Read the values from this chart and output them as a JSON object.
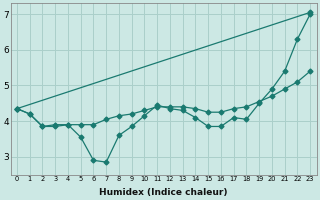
{
  "xlabel": "Humidex (Indice chaleur)",
  "xlim": [
    -0.5,
    23.5
  ],
  "ylim": [
    2.5,
    7.3
  ],
  "yticks": [
    3,
    4,
    5,
    6,
    7
  ],
  "xticks": [
    0,
    1,
    2,
    3,
    4,
    5,
    6,
    7,
    8,
    9,
    10,
    11,
    12,
    13,
    14,
    15,
    16,
    17,
    18,
    19,
    20,
    21,
    22,
    23
  ],
  "bg_color": "#cce8e4",
  "grid_color": "#aacfca",
  "line_color": "#1a7a70",
  "line_top": {
    "x": [
      0,
      23
    ],
    "y": [
      4.35,
      7.05
    ]
  },
  "line_mid": {
    "x": [
      0,
      1,
      2,
      3,
      4,
      5,
      6,
      7,
      8,
      9,
      10,
      11,
      12,
      13,
      14,
      15,
      16,
      17,
      18,
      19,
      20,
      21,
      22,
      23
    ],
    "y": [
      4.35,
      4.2,
      3.85,
      3.9,
      3.9,
      3.9,
      3.9,
      4.05,
      4.15,
      4.2,
      4.3,
      4.4,
      4.4,
      4.4,
      4.35,
      4.25,
      4.25,
      4.35,
      4.4,
      4.55,
      4.7,
      4.9,
      5.1,
      5.4
    ]
  },
  "line_low": {
    "x": [
      0,
      1,
      2,
      3,
      4,
      5,
      6,
      7,
      8,
      9,
      10,
      11,
      12,
      13,
      14,
      15,
      16,
      17,
      18,
      19,
      20,
      21,
      22,
      23
    ],
    "y": [
      4.35,
      4.2,
      3.85,
      3.85,
      3.9,
      3.55,
      2.9,
      2.85,
      3.6,
      3.85,
      4.15,
      4.45,
      4.35,
      4.3,
      4.1,
      3.85,
      3.85,
      4.1,
      4.05,
      4.5,
      4.9,
      5.4,
      6.3,
      7.0
    ]
  }
}
